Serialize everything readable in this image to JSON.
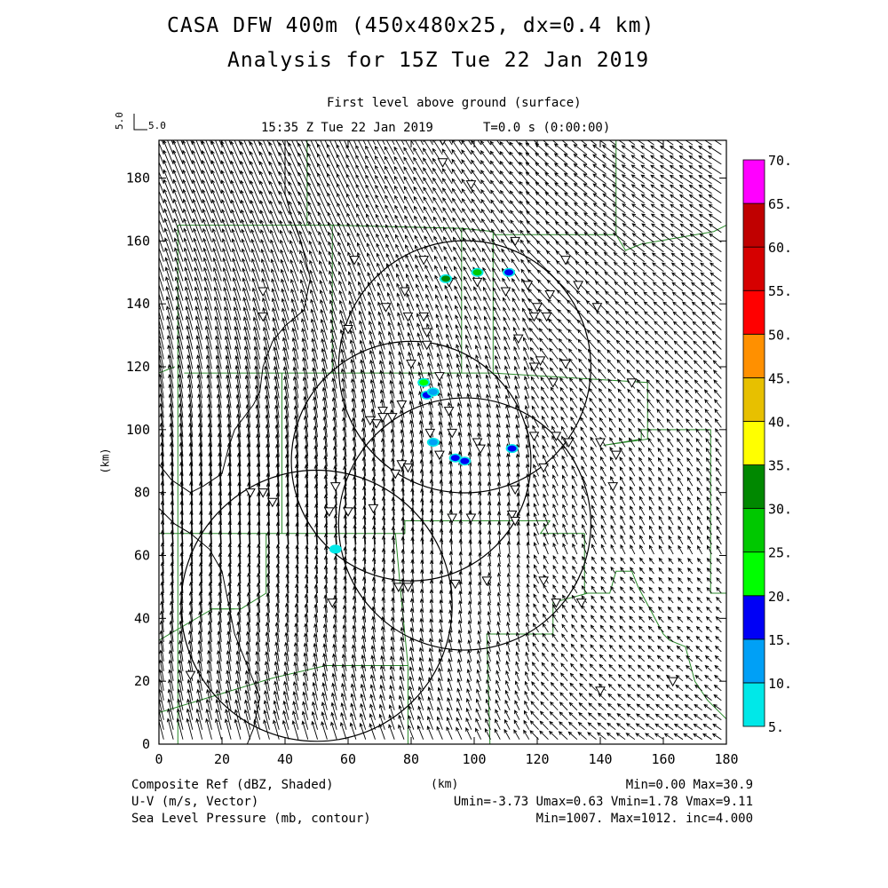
{
  "header": {
    "title_line1": "CASA DFW 400m (450x480x25, dx=0.4 km)",
    "title_line2": "Analysis for 15Z Tue 22 Jan 2019",
    "level": "First level above ground (surface)",
    "valid_time": "15:35 Z Tue 22 Jan 2019",
    "forecast_time": "T=0.0 s (0:00:00)",
    "vector_scale_vertical": "5.0",
    "vector_scale_horizontal": "5.0"
  },
  "footer": {
    "field1": "Composite Ref (dBZ, Shaded)",
    "field2": "U-V (m/s, Vector)",
    "field3": "Sea Level Pressure (mb, contour)",
    "xunit": "(km)",
    "stats1": "Min=0.00 Max=30.9",
    "stats2": "Umin=-3.73 Umax=0.63 Vmin=1.78 Vmax=9.11",
    "stats3": "Min=1007. Max=1012. inc=4.000"
  },
  "chart_data": {
    "type": "heatmap",
    "xlabel": "(km)",
    "ylabel": "(km)",
    "xlim": [
      0,
      180
    ],
    "ylim": [
      0,
      192
    ],
    "x_ticks": [
      0,
      20,
      40,
      60,
      80,
      100,
      120,
      140,
      160,
      180
    ],
    "y_ticks": [
      0,
      20,
      40,
      60,
      80,
      100,
      120,
      140,
      160,
      180
    ],
    "colorbar": {
      "labels": [
        "5.",
        "10.",
        "15.",
        "20.",
        "25.",
        "30.",
        "35.",
        "40.",
        "45.",
        "50.",
        "55.",
        "60.",
        "65.",
        "70."
      ],
      "colors": [
        "#00e8e8",
        "#00a0f6",
        "#0000f6",
        "#00ff00",
        "#00c800",
        "#008800",
        "#ffff00",
        "#e7c000",
        "#ff9000",
        "#ff0000",
        "#d60000",
        "#c00000",
        "#ff00ff"
      ]
    },
    "radar_rings": [
      {
        "cx": 97,
        "cy": 120,
        "r": 40
      },
      {
        "cx": 80,
        "cy": 90,
        "r": 38
      },
      {
        "cx": 97,
        "cy": 70,
        "r": 40
      },
      {
        "cx": 50,
        "cy": 44,
        "r": 43
      }
    ],
    "reflectivity_echoes": [
      {
        "x": 91,
        "y": 148,
        "dbz": 30
      },
      {
        "x": 101,
        "y": 150,
        "dbz": 25
      },
      {
        "x": 111,
        "y": 150,
        "dbz": 15
      },
      {
        "x": 84,
        "y": 115,
        "dbz": 20
      },
      {
        "x": 85,
        "y": 111,
        "dbz": 15
      },
      {
        "x": 87,
        "y": 112,
        "dbz": 12
      },
      {
        "x": 87,
        "y": 96,
        "dbz": 10
      },
      {
        "x": 94,
        "y": 91,
        "dbz": 15
      },
      {
        "x": 97,
        "y": 90,
        "dbz": 15
      },
      {
        "x": 112,
        "y": 94,
        "dbz": 15
      },
      {
        "x": 56,
        "y": 62,
        "dbz": 8
      }
    ],
    "wind_field": {
      "u_min": -3.73,
      "u_max": 0.63,
      "v_min": 1.78,
      "v_max": 9.11
    },
    "reflectivity": {
      "min": 0.0,
      "max": 30.9
    },
    "pressure": {
      "min": 1007,
      "max": 1012,
      "inc": 4.0
    },
    "station_markers": [
      [
        90,
        192
      ],
      [
        90,
        185
      ],
      [
        99,
        178
      ],
      [
        113,
        160
      ],
      [
        62,
        154
      ],
      [
        84,
        154
      ],
      [
        129,
        154
      ],
      [
        92,
        147
      ],
      [
        101,
        147
      ],
      [
        117,
        146
      ],
      [
        133,
        146
      ],
      [
        33,
        144
      ],
      [
        78,
        144
      ],
      [
        110,
        144
      ],
      [
        124,
        143
      ],
      [
        72,
        139
      ],
      [
        120,
        139
      ],
      [
        139,
        139
      ],
      [
        33,
        136
      ],
      [
        79,
        136
      ],
      [
        84,
        136
      ],
      [
        119,
        136
      ],
      [
        123,
        136
      ],
      [
        60,
        132
      ],
      [
        85,
        131
      ],
      [
        114,
        129
      ],
      [
        85,
        127
      ],
      [
        121,
        122
      ],
      [
        119,
        120
      ],
      [
        80,
        121
      ],
      [
        129,
        121
      ],
      [
        89,
        117
      ],
      [
        125,
        115
      ],
      [
        150,
        115
      ],
      [
        84,
        115
      ],
      [
        77,
        108
      ],
      [
        71,
        106
      ],
      [
        92,
        106
      ],
      [
        71,
        104
      ],
      [
        74,
        104
      ],
      [
        67,
        103
      ],
      [
        69,
        102
      ],
      [
        86,
        99
      ],
      [
        119,
        98
      ],
      [
        126,
        98
      ],
      [
        93,
        99
      ],
      [
        101,
        96
      ],
      [
        130,
        96
      ],
      [
        140,
        96
      ],
      [
        102,
        94
      ],
      [
        89,
        92
      ],
      [
        145,
        92
      ],
      [
        77,
        89
      ],
      [
        79,
        88
      ],
      [
        122,
        88
      ],
      [
        75,
        86
      ],
      [
        144,
        82
      ],
      [
        56,
        82
      ],
      [
        113,
        81
      ],
      [
        33,
        80
      ],
      [
        29,
        80
      ],
      [
        112,
        73
      ],
      [
        113,
        71
      ],
      [
        36,
        77
      ],
      [
        68,
        75
      ],
      [
        54,
        74
      ],
      [
        60,
        74
      ],
      [
        93,
        72
      ],
      [
        99,
        72
      ],
      [
        76,
        50
      ],
      [
        79,
        50
      ],
      [
        94,
        51
      ],
      [
        104,
        52
      ],
      [
        122,
        52
      ],
      [
        55,
        45
      ],
      [
        126,
        45
      ],
      [
        10,
        22
      ],
      [
        140,
        17
      ],
      [
        163,
        20
      ],
      [
        134,
        45
      ]
    ],
    "county_lines": [
      [
        [
          6,
          0
        ],
        [
          6,
          165
        ],
        [
          55,
          165
        ],
        [
          55,
          118
        ],
        [
          8,
          118
        ]
      ],
      [
        [
          55,
          165
        ],
        [
          96,
          164
        ],
        [
          96,
          118
        ],
        [
          55,
          118
        ]
      ],
      [
        [
          96,
          164
        ],
        [
          106,
          163
        ],
        [
          106,
          118
        ],
        [
          96,
          118
        ]
      ],
      [
        [
          106,
          162
        ],
        [
          145,
          162
        ],
        [
          148,
          157
        ],
        [
          153,
          159
        ],
        [
          176,
          163
        ],
        [
          180,
          165
        ]
      ],
      [
        [
          145,
          162
        ],
        [
          145,
          192
        ]
      ],
      [
        [
          47,
          192
        ],
        [
          47,
          165
        ]
      ],
      [
        [
          106,
          118
        ],
        [
          155,
          115
        ],
        [
          155,
          97
        ],
        [
          141,
          95
        ],
        [
          153,
          97
        ],
        [
          153,
          100
        ],
        [
          175,
          100
        ],
        [
          175,
          48
        ],
        [
          180,
          48
        ]
      ],
      [
        [
          0,
          67
        ],
        [
          34,
          67
        ],
        [
          34,
          48
        ],
        [
          26,
          43
        ],
        [
          16,
          43
        ]
      ],
      [
        [
          34,
          67
        ],
        [
          78,
          67
        ],
        [
          78,
          71
        ],
        [
          124,
          71
        ],
        [
          121,
          67
        ],
        [
          125,
          67
        ],
        [
          135,
          67
        ]
      ],
      [
        [
          39,
          118
        ],
        [
          39,
          67
        ]
      ],
      [
        [
          0,
          10
        ],
        [
          36,
          21
        ],
        [
          53,
          25
        ],
        [
          79,
          25
        ],
        [
          77,
          45
        ],
        [
          75,
          67
        ]
      ],
      [
        [
          0,
          33
        ],
        [
          17,
          43
        ],
        [
          24,
          43
        ]
      ],
      [
        [
          79,
          25
        ],
        [
          79,
          0
        ]
      ],
      [
        [
          135,
          67
        ],
        [
          135,
          48
        ],
        [
          143,
          48
        ],
        [
          145,
          55
        ],
        [
          150,
          55
        ],
        [
          152,
          50
        ],
        [
          160,
          35
        ],
        [
          162,
          33
        ],
        [
          167,
          31
        ],
        [
          170,
          20
        ],
        [
          174,
          14
        ],
        [
          180,
          8
        ]
      ],
      [
        [
          105,
          0
        ],
        [
          104,
          35
        ],
        [
          125,
          35
        ],
        [
          125,
          45
        ],
        [
          136,
          48
        ]
      ],
      [
        [
          0,
          118
        ],
        [
          5,
          120
        ]
      ]
    ],
    "pressure_contours": [
      [
        [
          40,
          192
        ],
        [
          40,
          175
        ],
        [
          42,
          168
        ],
        [
          45,
          160
        ],
        [
          48,
          148
        ],
        [
          46,
          138
        ],
        [
          40,
          133
        ],
        [
          36,
          128
        ],
        [
          33,
          120
        ],
        [
          32,
          112
        ],
        [
          30,
          108
        ],
        [
          24,
          100
        ],
        [
          22,
          94
        ],
        [
          20,
          86
        ],
        [
          14,
          82
        ],
        [
          10,
          80
        ],
        [
          4,
          84
        ],
        [
          0,
          89
        ]
      ],
      [
        [
          0,
          75
        ],
        [
          5,
          70
        ],
        [
          10,
          67
        ],
        [
          16,
          62
        ],
        [
          20,
          55
        ],
        [
          22,
          45
        ],
        [
          24,
          35
        ],
        [
          28,
          25
        ],
        [
          32,
          15
        ],
        [
          30,
          5
        ],
        [
          28,
          0
        ]
      ]
    ]
  }
}
